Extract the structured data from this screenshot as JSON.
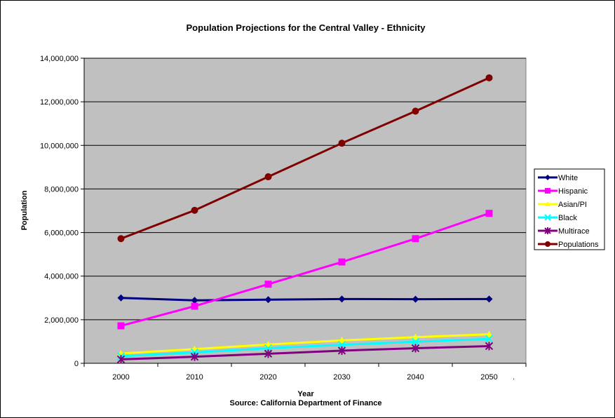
{
  "chart_data": {
    "type": "line",
    "title": "Population Projections for the Central Valley - Ethnicity",
    "xlabel": "Year",
    "ylabel": "Population",
    "source_note": "Source: California Department of Finance",
    "stray_mark": ".",
    "categories": [
      "2000",
      "2010",
      "2020",
      "2030",
      "2040",
      "2050"
    ],
    "ylim": [
      0,
      14000000
    ],
    "yticks": [
      0,
      2000000,
      4000000,
      6000000,
      8000000,
      10000000,
      12000000,
      14000000
    ],
    "ytick_labels": [
      "0",
      "2,000,000",
      "4,000,000",
      "6,000,000",
      "8,000,000",
      "10,000,000",
      "12,000,000",
      "14,000,000"
    ],
    "grid": "horizontal",
    "legend_position": "right",
    "plot_background": "#c0c0c0",
    "series": [
      {
        "name": "White",
        "color": "#000080",
        "marker": "diamond",
        "values": [
          3000000,
          2890000,
          2920000,
          2950000,
          2940000,
          2950000
        ]
      },
      {
        "name": "Hispanic",
        "color": "#ff00ff",
        "marker": "square",
        "values": [
          1720000,
          2620000,
          3630000,
          4650000,
          5720000,
          6880000
        ]
      },
      {
        "name": "Asian/PI",
        "color": "#ffff00",
        "marker": "triangle",
        "values": [
          450000,
          650000,
          860000,
          1050000,
          1200000,
          1330000
        ]
      },
      {
        "name": "Black",
        "color": "#00ffff",
        "marker": "x",
        "values": [
          320000,
          500000,
          690000,
          850000,
          990000,
          1120000
        ]
      },
      {
        "name": "Multirace",
        "color": "#800080",
        "marker": "star",
        "values": [
          180000,
          300000,
          440000,
          580000,
          690000,
          790000
        ]
      },
      {
        "name": "Populations",
        "color": "#800000",
        "marker": "circle",
        "values": [
          5720000,
          7020000,
          8560000,
          10100000,
          11570000,
          13100000
        ]
      }
    ]
  }
}
